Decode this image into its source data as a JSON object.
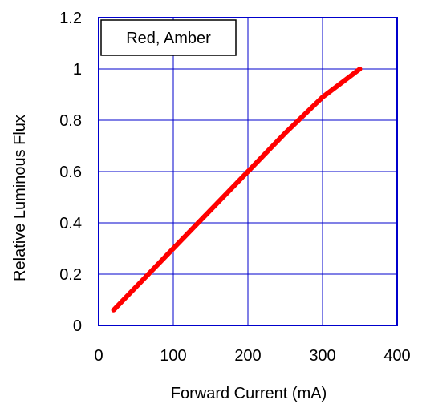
{
  "chart_data": {
    "type": "line",
    "title": "",
    "xlabel": "Forward Current (mA)",
    "ylabel": "Relative Luminous Flux",
    "xlim": [
      0,
      400
    ],
    "ylim": [
      0,
      1.2
    ],
    "x_ticks": [
      "0",
      "100",
      "200",
      "300",
      "400"
    ],
    "y_ticks": [
      "0",
      "0.2",
      "0.4",
      "0.6",
      "0.8",
      "1",
      "1.2"
    ],
    "x_tick_values": [
      0,
      100,
      200,
      300,
      400
    ],
    "y_tick_values": [
      0,
      0.2,
      0.4,
      0.6,
      0.8,
      1.0,
      1.2
    ],
    "grid": true,
    "legend_position": "top-left",
    "series": [
      {
        "name": "Red, Amber",
        "color": "#ff0000",
        "x": [
          20,
          50,
          100,
          150,
          200,
          250,
          300,
          350
        ],
        "y": [
          0.06,
          0.15,
          0.3,
          0.45,
          0.6,
          0.75,
          0.89,
          1.0
        ]
      }
    ],
    "colors": {
      "frame": "#0000cc",
      "grid": "#0000cc",
      "line": "#ff0000"
    }
  }
}
